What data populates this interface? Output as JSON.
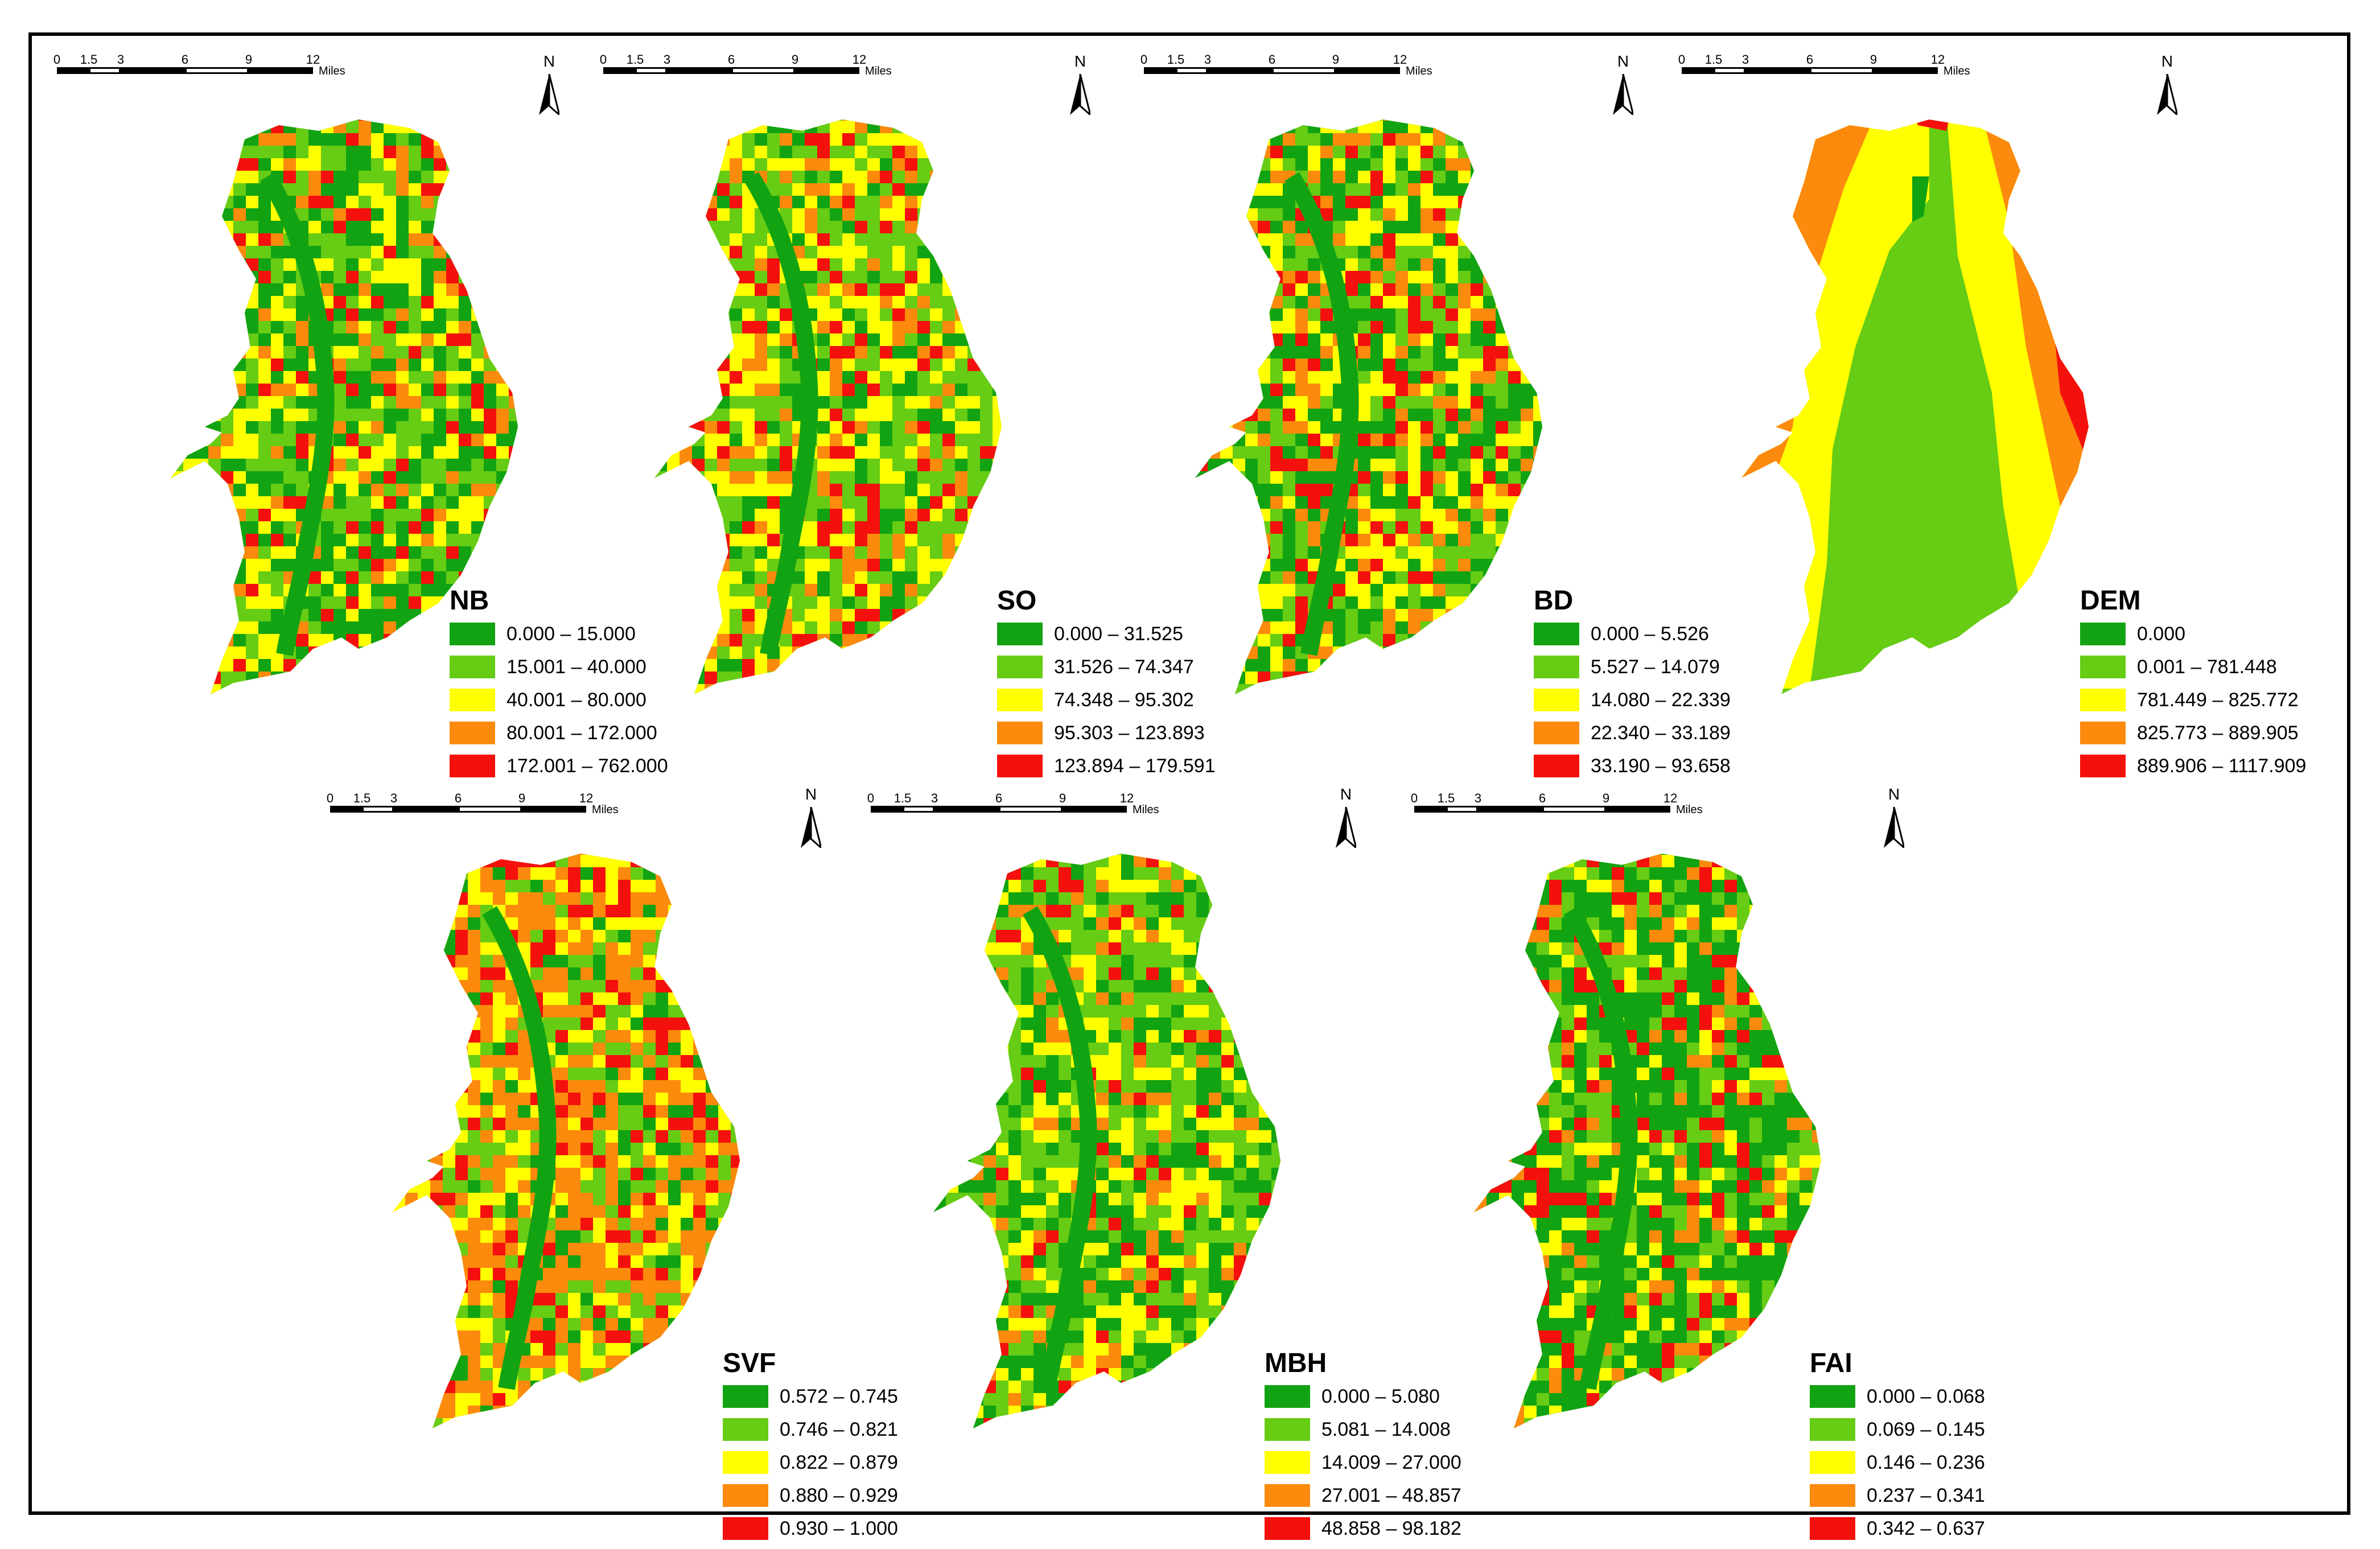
{
  "colors": {
    "class1": "#12a312",
    "class2": "#66cc14",
    "class3": "#ffff00",
    "class4": "#fb8a0d",
    "class5": "#f4100c"
  },
  "scale_bar": {
    "ticks": [
      "0",
      "1.5",
      "3",
      "6",
      "9",
      "12"
    ],
    "units": "Miles"
  },
  "north_label": "N",
  "panels": [
    {
      "id": "nb",
      "title": "NB",
      "classes": [
        "0.000 – 15.000",
        "15.001 – 40.000",
        "40.001 – 80.000",
        "80.001 – 172.000",
        "172.001 – 762.000"
      ]
    },
    {
      "id": "so",
      "title": "SO",
      "classes": [
        "0.000 – 31.525",
        "31.526 – 74.347",
        "74.348 – 95.302",
        "95.303 – 123.893",
        "123.894 – 179.591"
      ]
    },
    {
      "id": "bd",
      "title": "BD",
      "classes": [
        "0.000 – 5.526",
        "5.527 – 14.079",
        "14.080 – 22.339",
        "22.340 – 33.189",
        "33.190 – 93.658"
      ]
    },
    {
      "id": "dem",
      "title": "DEM",
      "classes": [
        "0.000",
        "0.001 – 781.448",
        "781.449 – 825.772",
        "825.773 – 889.905",
        "889.906 – 1117.909"
      ]
    },
    {
      "id": "svf",
      "title": "SVF",
      "classes": [
        "0.572 – 0.745",
        "0.746 – 0.821",
        "0.822 – 0.879",
        "0.880 – 0.929",
        "0.930 – 1.000"
      ]
    },
    {
      "id": "mbh",
      "title": "MBH",
      "classes": [
        "0.000 – 5.080",
        "5.081 – 14.008",
        "14.009 – 27.000",
        "27.001 – 48.857",
        "48.858 – 98.182"
      ]
    },
    {
      "id": "fai",
      "title": "FAI",
      "classes": [
        "0.000 – 0.068",
        "0.069 – 0.145",
        "0.146 – 0.236",
        "0.237 – 0.341",
        "0.342 – 0.637"
      ]
    }
  ]
}
